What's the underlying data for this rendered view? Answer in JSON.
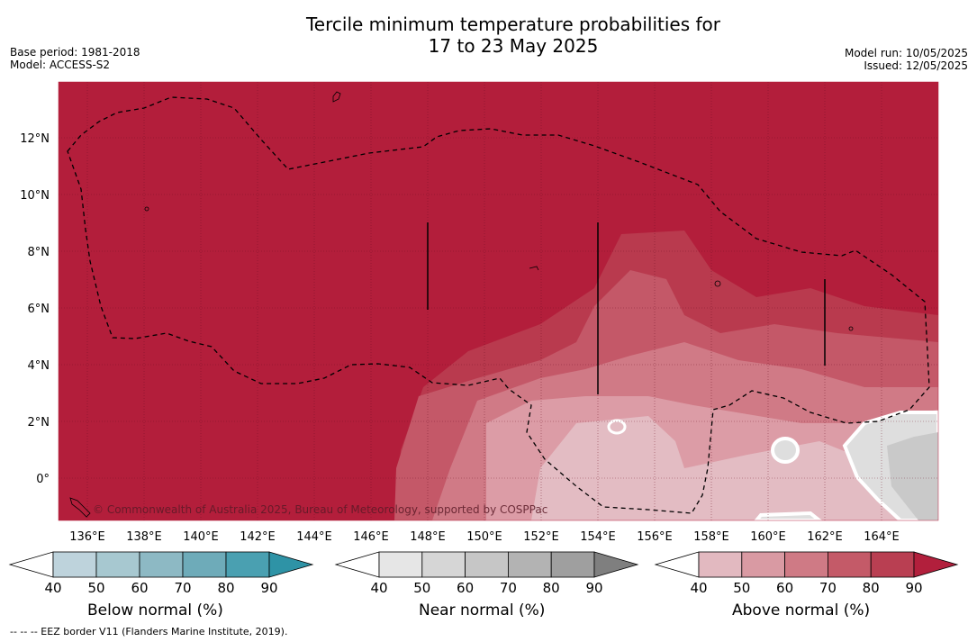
{
  "title_line1": "Tercile minimum temperature probabilities for",
  "title_line2": "17 to 23 May 2025",
  "meta_left": [
    "Base period: 1981-2018",
    "Model: ACCESS-S2"
  ],
  "meta_right": [
    "Model run: 10/05/2025",
    "Issued: 12/05/2025"
  ],
  "copyright": "© Commonwealth of Australia 2025, Bureau of Meteorology, supported by COSPPac",
  "footer": "--  --  -- EEZ border V11 (Flanders Marine Institute, 2019).",
  "lat_labels": [
    "12°N",
    "10°N",
    "8°N",
    "6°N",
    "4°N",
    "2°N",
    "0°"
  ],
  "lon_labels": [
    "136°E",
    "138°E",
    "140°E",
    "142°E",
    "144°E",
    "146°E",
    "148°E",
    "150°E",
    "152°E",
    "154°E",
    "156°E",
    "158°E",
    "160°E",
    "162°E",
    "164°E"
  ],
  "legends": [
    {
      "title": "Below normal (%)",
      "ticks": [
        "40",
        "50",
        "60",
        "70",
        "80",
        "90"
      ],
      "colors": [
        "#bed3dc",
        "#a7c8d0",
        "#8db9c4",
        "#6eabb9",
        "#4aa0b1",
        "#2e93a6"
      ]
    },
    {
      "title": "Near normal (%)",
      "ticks": [
        "40",
        "50",
        "60",
        "70",
        "80",
        "90"
      ],
      "colors": [
        "#e6e6e6",
        "#d6d6d6",
        "#c6c6c6",
        "#b3b3b3",
        "#9f9f9f",
        "#7f7f7f"
      ]
    },
    {
      "title": "Above normal (%)",
      "ticks": [
        "40",
        "50",
        "60",
        "70",
        "80",
        "90"
      ],
      "colors": [
        "#e2b9c0",
        "#d99aa3",
        "#cf7a85",
        "#c45a68",
        "#b93f52",
        "#b21f3c"
      ]
    }
  ],
  "colors": {
    "base": "#b31e3b",
    "above80": "#b93a4e",
    "above70": "#c45868",
    "above60": "#d07a86",
    "above50": "#dc9ca6",
    "above40": "#e3bcc3",
    "near40": "#dedede",
    "near50": "#c9c9c9"
  }
}
